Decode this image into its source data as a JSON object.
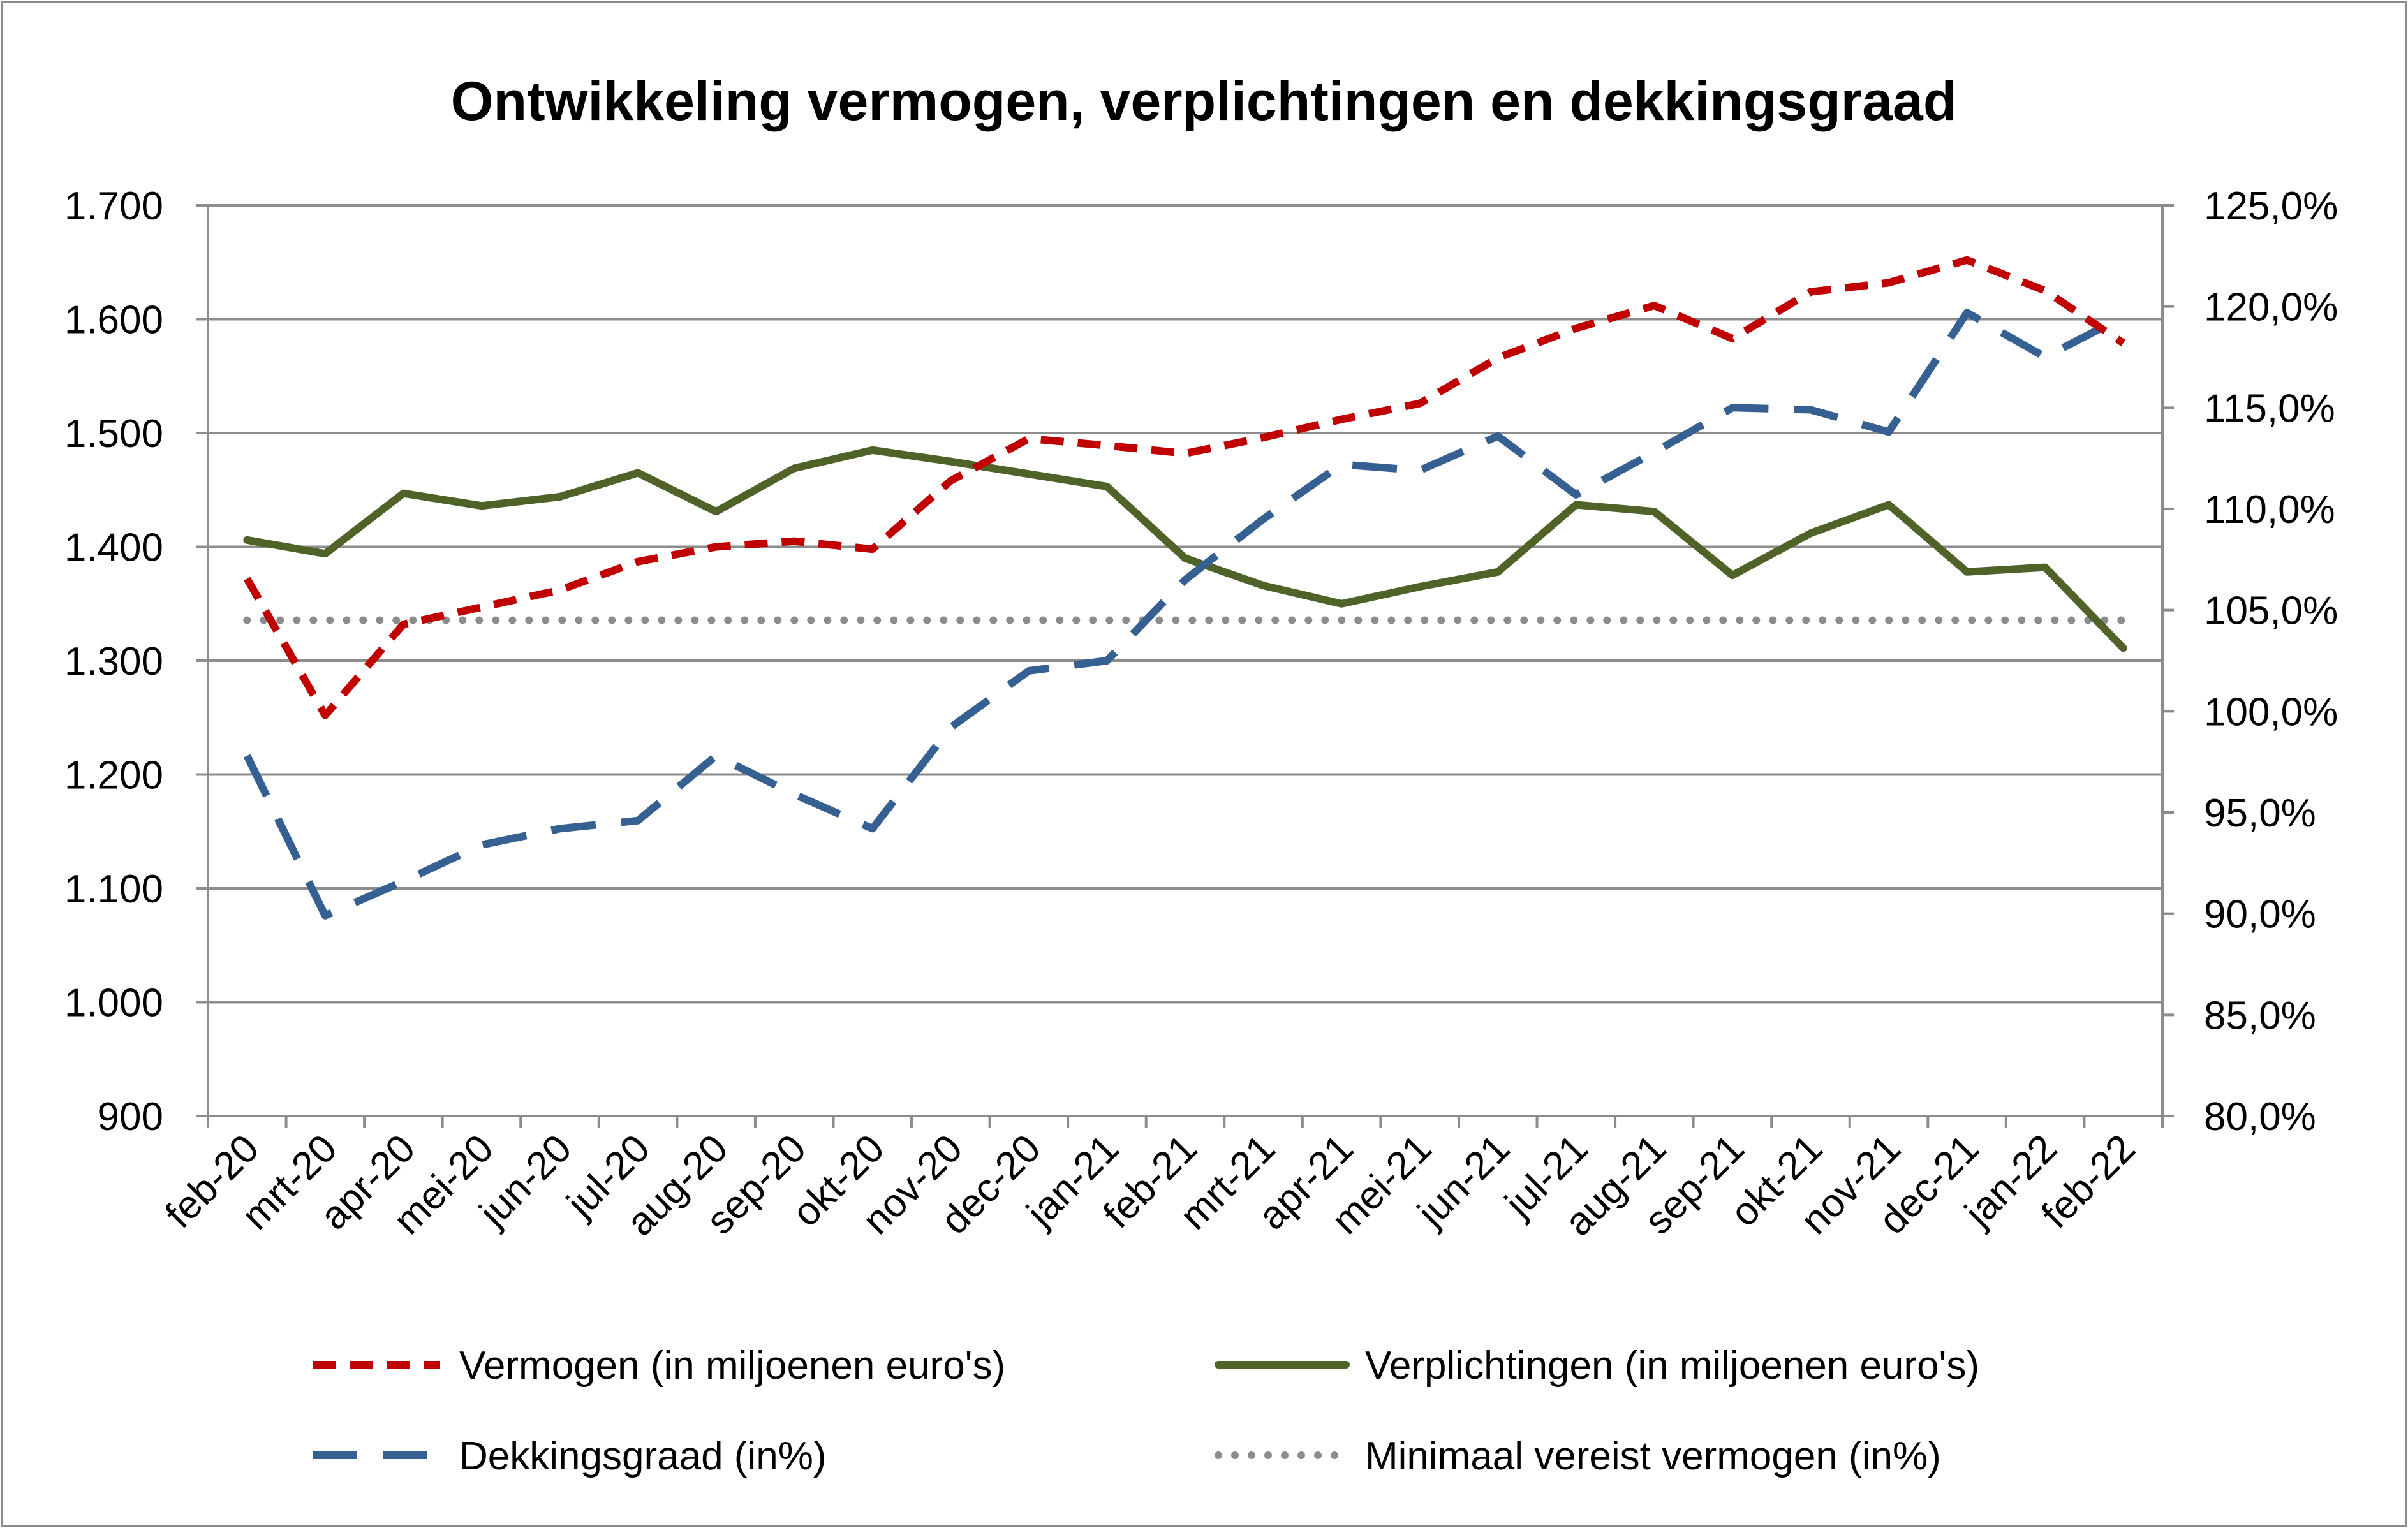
{
  "chart_data": {
    "type": "line",
    "title": "Ontwikkeling vermogen, verplichtingen en dekkingsgraad",
    "categories": [
      "feb-20",
      "mrt-20",
      "apr-20",
      "mei-20",
      "jun-20",
      "jul-20",
      "aug-20",
      "sep-20",
      "okt-20",
      "nov-20",
      "dec-20",
      "jan-21",
      "feb-21",
      "mrt-21",
      "apr-21",
      "mei-21",
      "jun-21",
      "jul-21",
      "aug-21",
      "sep-21",
      "okt-21",
      "nov-21",
      "dec-21",
      "jan-22",
      "feb-22"
    ],
    "y_left": {
      "min": 900,
      "max": 1700,
      "ticks": [
        900,
        1000,
        1100,
        1200,
        1300,
        1400,
        1500,
        1600,
        1700
      ],
      "tick_labels": [
        "900",
        "1.000",
        "1.100",
        "1.200",
        "1.300",
        "1.400",
        "1.500",
        "1.600",
        "1.700"
      ]
    },
    "y_right": {
      "min": 80,
      "max": 125,
      "ticks": [
        80,
        85,
        90,
        95,
        100,
        105,
        110,
        115,
        120,
        125
      ],
      "tick_labels": [
        "80,0%",
        "85,0%",
        "90,0%",
        "95,0%",
        "100,0%",
        "105,0%",
        "110,0%",
        "115,0%",
        "120,0%",
        "125,0%"
      ]
    },
    "grid": true,
    "legend_position": "bottom",
    "series": [
      {
        "name": "Vermogen (in miljoenen euro's)",
        "axis": "left",
        "style": "dashed",
        "color": "#c00000",
        "values": [
          1372,
          1252,
          1332,
          1347,
          1362,
          1387,
          1400,
          1405,
          1398,
          1458,
          1495,
          1489,
          1482,
          1496,
          1512,
          1526,
          1566,
          1592,
          1612,
          1583,
          1624,
          1632,
          1652,
          1625,
          1579
        ]
      },
      {
        "name": "Verplichtingen (in miljoenen euro's)",
        "axis": "left",
        "style": "solid",
        "color": "#4f6228",
        "values": [
          1406,
          1394,
          1447,
          1436,
          1444,
          1465,
          1431,
          1469,
          1485,
          1475,
          1464,
          1453,
          1390,
          1366,
          1350,
          1365,
          1378,
          1437,
          1431,
          1375,
          1412,
          1437,
          1378,
          1382,
          1311
        ]
      },
      {
        "name": "Dekkingsgraad (in%)",
        "axis": "right",
        "style": "longdash",
        "color": "#366092",
        "values": [
          97.8,
          89.9,
          91.6,
          93.4,
          94.2,
          94.6,
          97.8,
          95.9,
          94.2,
          99.2,
          102.0,
          102.5,
          106.5,
          109.5,
          112.2,
          111.9,
          113.6,
          110.7,
          112.8,
          115.0,
          114.9,
          113.8,
          119.7,
          117.5,
          119.5
        ]
      },
      {
        "name": "Minimaal vereist vermogen (in%)",
        "axis": "right",
        "style": "dotted",
        "color": "#8c8c8c",
        "values": [
          104.5,
          104.5,
          104.5,
          104.5,
          104.5,
          104.5,
          104.5,
          104.5,
          104.5,
          104.5,
          104.5,
          104.5,
          104.5,
          104.5,
          104.5,
          104.5,
          104.5,
          104.5,
          104.5,
          104.5,
          104.5,
          104.5,
          104.5,
          104.5,
          104.5
        ]
      }
    ]
  }
}
